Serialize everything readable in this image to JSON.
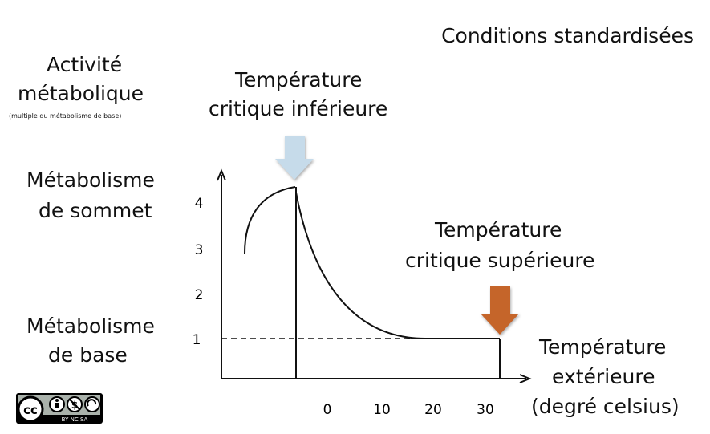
{
  "title": "Conditions standardisées",
  "y_axis_label": {
    "line1": "Activité",
    "line2": "métabolique",
    "note": "(multiple du métabolisme de base)"
  },
  "labels": {
    "peak_line1": "Métabolisme",
    "peak_line2": "de sommet",
    "base_line1": "Métabolisme",
    "base_line2": "de base",
    "lower_critical_line1": "Température",
    "lower_critical_line2": "critique inférieure",
    "upper_critical_line1": "Température",
    "upper_critical_line2": "critique supérieure",
    "x_axis_line1": "Température",
    "x_axis_line2": "extérieure",
    "x_axis_line3": "(degré celsius)"
  },
  "y_ticks": [
    "1",
    "2",
    "3",
    "4"
  ],
  "x_ticks": [
    "0",
    "10",
    "20",
    "30"
  ],
  "colors": {
    "lower_arrow": "#c6dbea",
    "upper_arrow": "#c5652a",
    "lines": "#111111"
  },
  "license": {
    "badge": "cc",
    "sub": "BY  NC  SA"
  }
}
